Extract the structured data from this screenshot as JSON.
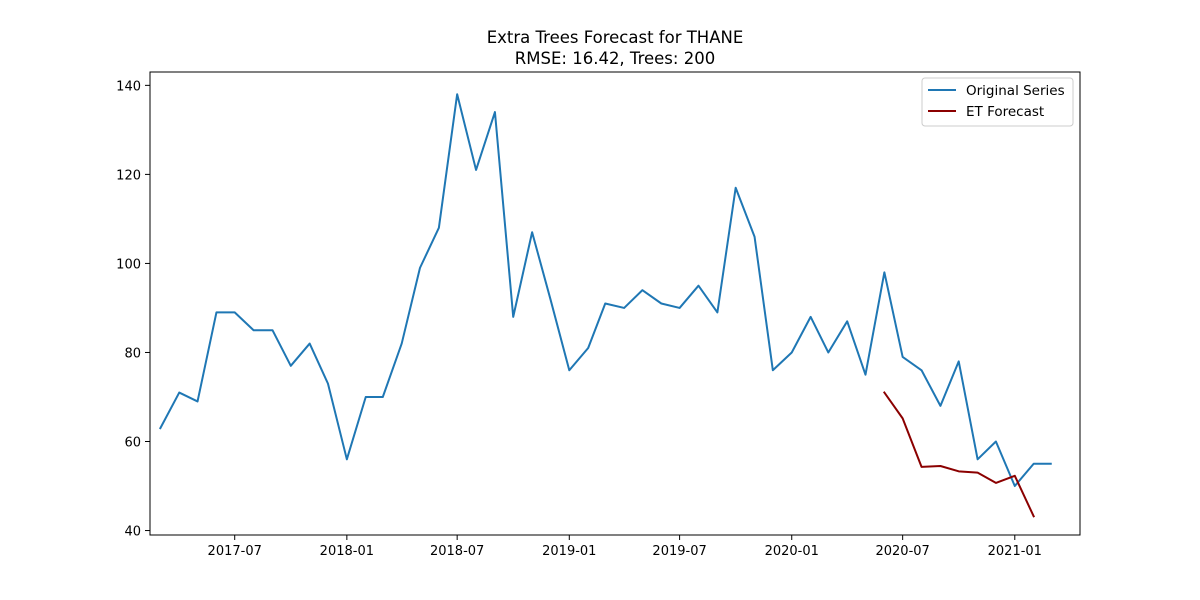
{
  "chart_data": {
    "type": "line",
    "title": "Extra Trees Forecast for THANE",
    "subtitle": "RMSE: 16.42, Trees: 200",
    "xlabel": "",
    "ylabel": "",
    "ylim": [
      39,
      143
    ],
    "xlim": [
      "2017-02-12",
      "2021-04-18"
    ],
    "grid": false,
    "legend_position": "top-right",
    "x_ticks": [
      "2017-07",
      "2018-01",
      "2018-07",
      "2019-01",
      "2019-07",
      "2020-01",
      "2020-07",
      "2021-01"
    ],
    "y_ticks": [
      40,
      60,
      80,
      100,
      120,
      140
    ],
    "series": [
      {
        "name": "Original Series",
        "color": "#1f77b4",
        "x": [
          "2017-03",
          "2017-04",
          "2017-05",
          "2017-06",
          "2017-07",
          "2017-08",
          "2017-09",
          "2017-10",
          "2017-11",
          "2017-12",
          "2018-01",
          "2018-02",
          "2018-03",
          "2018-04",
          "2018-05",
          "2018-06",
          "2018-07",
          "2018-08",
          "2018-09",
          "2018-10",
          "2018-11",
          "2018-12",
          "2019-01",
          "2019-02",
          "2019-03",
          "2019-04",
          "2019-05",
          "2019-06",
          "2019-07",
          "2019-08",
          "2019-09",
          "2019-10",
          "2019-11",
          "2019-12",
          "2020-01",
          "2020-02",
          "2020-03",
          "2020-04",
          "2020-05",
          "2020-06",
          "2020-07",
          "2020-08",
          "2020-09",
          "2020-10",
          "2020-11",
          "2020-12",
          "2021-01",
          "2021-02",
          "2021-03"
        ],
        "values": [
          63,
          71,
          69,
          89,
          89,
          85,
          85,
          77,
          82,
          73,
          56,
          70,
          70,
          82,
          99,
          108,
          138,
          121,
          134,
          88,
          107,
          92,
          76,
          81,
          91,
          90,
          94,
          91,
          90,
          95,
          89,
          117,
          106,
          76,
          80,
          88,
          80,
          87,
          75,
          98,
          79,
          76,
          68,
          78,
          56,
          60,
          50,
          55,
          55
        ]
      },
      {
        "name": "ET Forecast",
        "color": "#8b0000",
        "x": [
          "2020-06",
          "2020-07",
          "2020-08",
          "2020-09",
          "2020-10",
          "2020-11",
          "2020-12",
          "2021-01",
          "2021-02"
        ],
        "values": [
          71,
          65.2,
          54.3,
          54.5,
          53.3,
          53.0,
          50.7,
          52.3,
          43.2
        ]
      }
    ]
  }
}
